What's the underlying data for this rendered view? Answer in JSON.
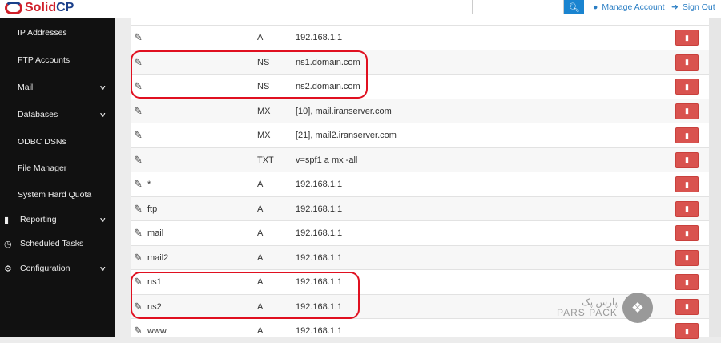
{
  "header": {
    "logo": "SolidCP",
    "logo_a": "Solid",
    "logo_b": "CP",
    "search_placeholder": "",
    "manage_account": "Manage Account",
    "sign_out": "Sign Out"
  },
  "sidebar": {
    "items": [
      {
        "label": "IP Addresses",
        "chevron": false
      },
      {
        "label": "FTP Accounts",
        "chevron": false
      },
      {
        "label": "Mail",
        "chevron": true
      },
      {
        "label": "Databases",
        "chevron": true
      },
      {
        "label": "ODBC DSNs",
        "chevron": false
      },
      {
        "label": "File Manager",
        "chevron": false
      },
      {
        "label": "System Hard Quota",
        "chevron": false
      }
    ],
    "top_items": [
      {
        "label": "Reporting",
        "icon": "bar-chart-icon",
        "chevron": true
      },
      {
        "label": "Scheduled Tasks",
        "icon": "clock-icon",
        "chevron": false
      },
      {
        "label": "Configuration",
        "icon": "gears-icon",
        "chevron": true
      }
    ]
  },
  "records": [
    {
      "name": "",
      "type": "A",
      "value": "192.168.1.1"
    },
    {
      "name": "",
      "type": "NS",
      "value": "ns1.domain.com"
    },
    {
      "name": "",
      "type": "NS",
      "value": "ns2.domain.com"
    },
    {
      "name": "",
      "type": "MX",
      "value": "[10], mail.iranserver.com"
    },
    {
      "name": "",
      "type": "MX",
      "value": "[21], mail2.iranserver.com"
    },
    {
      "name": "",
      "type": "TXT",
      "value": "v=spf1 a mx -all"
    },
    {
      "name": "*",
      "type": "A",
      "value": "192.168.1.1"
    },
    {
      "name": "ftp",
      "type": "A",
      "value": "192.168.1.1"
    },
    {
      "name": "mail",
      "type": "A",
      "value": "192.168.1.1"
    },
    {
      "name": "mail2",
      "type": "A",
      "value": "192.168.1.1"
    },
    {
      "name": "ns1",
      "type": "A",
      "value": "192.168.1.1"
    },
    {
      "name": "ns2",
      "type": "A",
      "value": "192.168.1.1"
    },
    {
      "name": "www",
      "type": "A",
      "value": "192.168.1.1"
    }
  ],
  "watermark": {
    "text_fa": "پارس پک",
    "text_en": "PARS PACK"
  },
  "colors": {
    "accent": "#1a84d0",
    "delete": "#d9534f",
    "highlight": "#e01020",
    "sidebar": "#111111"
  }
}
